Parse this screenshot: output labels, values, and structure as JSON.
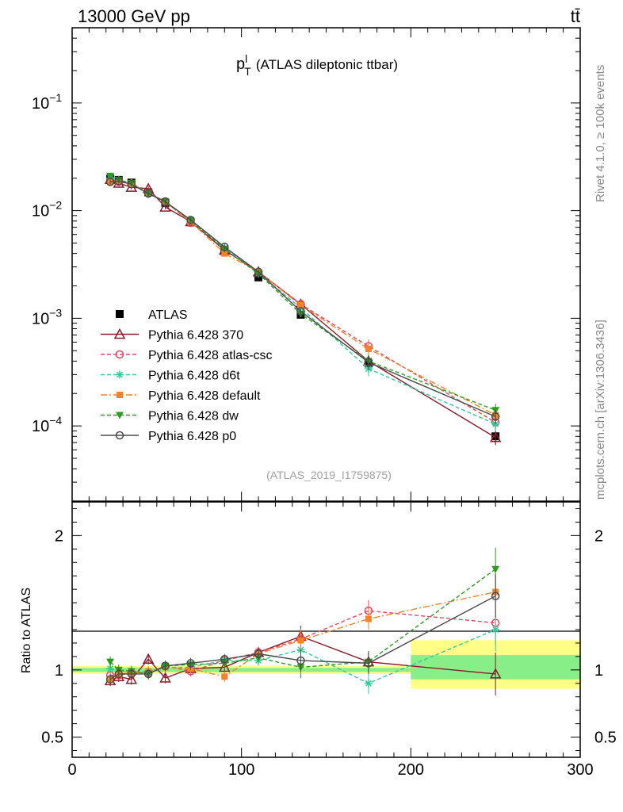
{
  "header": {
    "left": "13000 GeV pp",
    "right": "tt̄"
  },
  "side_text": {
    "top": "Rivet 4.1.0, ≥ 100k events",
    "bottom": "mcplots.cern.ch [arXiv:1306.3436]"
  },
  "chart_data": [
    {
      "type": "line",
      "panel": "main",
      "title": "p",
      "title_sup": "l",
      "title_sub": "T",
      "title_rest": "(ATLAS dileptonic ttbar)",
      "watermark": "(ATLAS_2019_I1759875)",
      "xlabel": "",
      "ylabel": "",
      "xlim": [
        0,
        300
      ],
      "ylim": [
        2e-05,
        0.5
      ],
      "yscale": "log",
      "yticks": [
        {
          "base": "10",
          "exp": "−1",
          "value": 0.1
        },
        {
          "base": "10",
          "exp": "−2",
          "value": 0.01
        },
        {
          "base": "10",
          "exp": "−3",
          "value": 0.001
        },
        {
          "base": "10",
          "exp": "−4",
          "value": 0.0001
        }
      ],
      "x": [
        22.5,
        27.5,
        35,
        45,
        55,
        70,
        90,
        110,
        135,
        175,
        250
      ],
      "series": [
        {
          "name": "ATLAS",
          "color": "#000000",
          "marker": "square",
          "dash": "none",
          "values": [
            0.0198,
            0.0193,
            0.0182,
            0.0148,
            0.0118,
            0.0078,
            0.0042,
            0.0024,
            0.00108,
            0.00038,
            8e-05
          ]
        },
        {
          "name": "Pythia 6.428 370",
          "color": "#8b1a2b",
          "marker": "triangle-open",
          "dash": "none",
          "values": [
            0.0195,
            0.018,
            0.0165,
            0.016,
            0.0108,
            0.0079,
            0.0043,
            0.0027,
            0.00135,
            0.0004,
            7.8e-05
          ]
        },
        {
          "name": "Pythia 6.428 atlas-csc",
          "color": "#e8455f",
          "marker": "circle-open",
          "dash": "5,3",
          "values": [
            0.019,
            0.0185,
            0.0178,
            0.0145,
            0.0122,
            0.0077,
            0.0046,
            0.0027,
            0.00135,
            0.00055,
            0.000108
          ]
        },
        {
          "name": "Pythia 6.428 d6t",
          "color": "#2ecc9a",
          "marker": "star",
          "dash": "5,3",
          "values": [
            0.02,
            0.0192,
            0.018,
            0.0145,
            0.012,
            0.008,
            0.0045,
            0.0026,
            0.00125,
            0.00034,
            0.000104
          ]
        },
        {
          "name": "Pythia 6.428 default",
          "color": "#f6832a",
          "marker": "square-filled",
          "dash": "8,3,2,3",
          "values": [
            0.0185,
            0.0188,
            0.0178,
            0.0147,
            0.012,
            0.0079,
            0.004,
            0.0027,
            0.00132,
            0.00052,
            0.000126
          ]
        },
        {
          "name": "Pythia 6.428 dw",
          "color": "#2a9d1e",
          "marker": "triangle-down",
          "dash": "5,3",
          "values": [
            0.021,
            0.0193,
            0.018,
            0.0143,
            0.0122,
            0.0081,
            0.0044,
            0.0026,
            0.0011,
            0.0004,
            0.00014
          ]
        },
        {
          "name": "Pythia 6.428 p0",
          "color": "#4a4a4a",
          "marker": "circle-open",
          "dash": "none",
          "values": [
            0.0185,
            0.0188,
            0.0176,
            0.0144,
            0.0121,
            0.0082,
            0.0046,
            0.0027,
            0.00116,
            0.00039,
            0.000122
          ]
        }
      ]
    },
    {
      "type": "line",
      "panel": "ratio",
      "ylabel": "Ratio to ATLAS",
      "xlim": [
        0,
        300
      ],
      "ylim": [
        0.35,
        2.25
      ],
      "yticks": [
        "0.5",
        "1",
        "2"
      ],
      "xticks": [
        "0",
        "100",
        "200",
        "300"
      ],
      "x": [
        22.5,
        27.5,
        35,
        45,
        55,
        70,
        90,
        110,
        135,
        175,
        250
      ],
      "bands": [
        {
          "x0": 0,
          "x1": 200,
          "low": 0.97,
          "high": 1.03,
          "color": "#ffff88"
        },
        {
          "x0": 0,
          "x1": 200,
          "low": 0.985,
          "high": 1.015,
          "color": "#88ee88"
        },
        {
          "x0": 200,
          "x1": 300,
          "low": 0.86,
          "high": 1.22,
          "color": "#ffff88"
        },
        {
          "x0": 200,
          "x1": 300,
          "low": 0.93,
          "high": 1.11,
          "color": "#88ee88"
        }
      ],
      "series": [
        {
          "name": "Pythia 6.428 370",
          "values": [
            0.92,
            0.95,
            0.93,
            1.08,
            0.94,
            1.01,
            1.02,
            1.13,
            1.25,
            1.06,
            0.97
          ]
        },
        {
          "name": "Pythia 6.428 atlas-csc",
          "values": [
            0.96,
            0.96,
            0.98,
            0.98,
            1.03,
            0.99,
            1.07,
            1.13,
            1.23,
            1.44,
            1.35
          ]
        },
        {
          "name": "Pythia 6.428 d6t",
          "values": [
            1.01,
            0.99,
            0.99,
            0.98,
            1.02,
            1.02,
            1.07,
            1.07,
            1.15,
            0.9,
            1.3
          ]
        },
        {
          "name": "Pythia 6.428 default",
          "values": [
            0.93,
            0.97,
            0.98,
            0.99,
            1.02,
            1.01,
            0.95,
            1.12,
            1.22,
            1.38,
            1.58
          ]
        },
        {
          "name": "Pythia 6.428 dw",
          "values": [
            1.06,
            1.0,
            0.99,
            0.97,
            1.03,
            1.04,
            1.05,
            1.09,
            1.02,
            1.06,
            1.75
          ]
        },
        {
          "name": "Pythia 6.428 p0",
          "values": [
            0.93,
            0.97,
            0.97,
            0.97,
            1.03,
            1.05,
            1.08,
            1.12,
            1.07,
            1.05,
            1.55
          ]
        }
      ]
    }
  ]
}
